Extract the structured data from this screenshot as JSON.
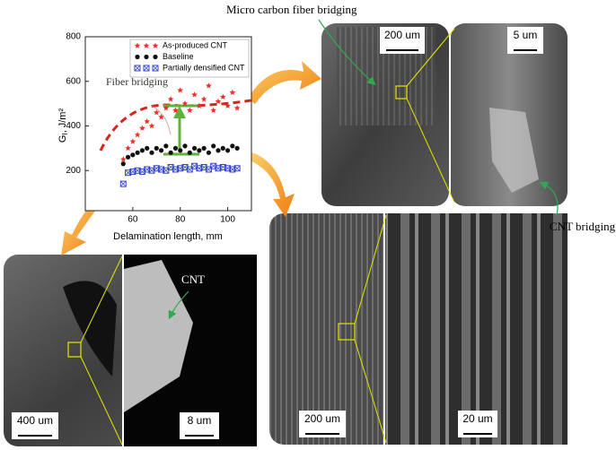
{
  "chart_data": {
    "type": "scatter",
    "x_label": "Delamination length, mm",
    "y_label": [
      "G",
      "I",
      ", J/m²"
    ],
    "xlim": [
      40,
      110
    ],
    "xticks": [
      60,
      80,
      100
    ],
    "ylim": [
      20,
      800
    ],
    "yticks": [
      200,
      400,
      600,
      800
    ],
    "legend": "upper right",
    "annotation": "Fiber bridging",
    "series": [
      {
        "name": "As-produced CNT",
        "color": "#e8332a",
        "marker": "star",
        "x": [
          56,
          58,
          60,
          62,
          64,
          66,
          68,
          70,
          72,
          74,
          76,
          78,
          80,
          82,
          84,
          86,
          88,
          90,
          92,
          94,
          96,
          98,
          100,
          102,
          104
        ],
        "values": [
          250,
          300,
          330,
          360,
          390,
          420,
          400,
          460,
          440,
          480,
          520,
          470,
          560,
          500,
          470,
          540,
          490,
          520,
          580,
          470,
          510,
          530,
          490,
          550,
          480
        ]
      },
      {
        "name": "Baseline",
        "color": "#111111",
        "marker": "circle",
        "x": [
          56,
          58,
          60,
          62,
          64,
          66,
          68,
          70,
          72,
          74,
          76,
          78,
          80,
          82,
          84,
          86,
          88,
          90,
          92,
          94,
          96,
          98,
          100,
          102,
          104
        ],
        "values": [
          230,
          260,
          270,
          280,
          290,
          300,
          280,
          300,
          290,
          310,
          280,
          300,
          290,
          310,
          280,
          300,
          290,
          300,
          280,
          310,
          290,
          300,
          290,
          310,
          300
        ]
      },
      {
        "name": "Partially densified CNT",
        "color": "#3346c8",
        "marker": "xsquare",
        "x": [
          56,
          58,
          60,
          62,
          64,
          66,
          68,
          70,
          72,
          74,
          76,
          78,
          80,
          82,
          84,
          86,
          88,
          90,
          92,
          94,
          96,
          98,
          100,
          102,
          104
        ],
        "values": [
          140,
          190,
          195,
          200,
          195,
          205,
          200,
          210,
          205,
          200,
          215,
          205,
          210,
          215,
          205,
          220,
          210,
          215,
          205,
          220,
          210,
          215,
          210,
          205,
          210
        ]
      }
    ]
  },
  "figure_labels": {
    "micro_fiber": "Micro carbon fiber bridging",
    "cnt_bridging": "CNT bridging",
    "cnt": "CNT",
    "scale_top_left": "200 um",
    "scale_top_right": "5 um",
    "scale_bottom_left_a": "400 um",
    "scale_bottom_left_b": "8 um",
    "scale_bottom_right_a": "200 um",
    "scale_bottom_right_b": "20 um"
  }
}
